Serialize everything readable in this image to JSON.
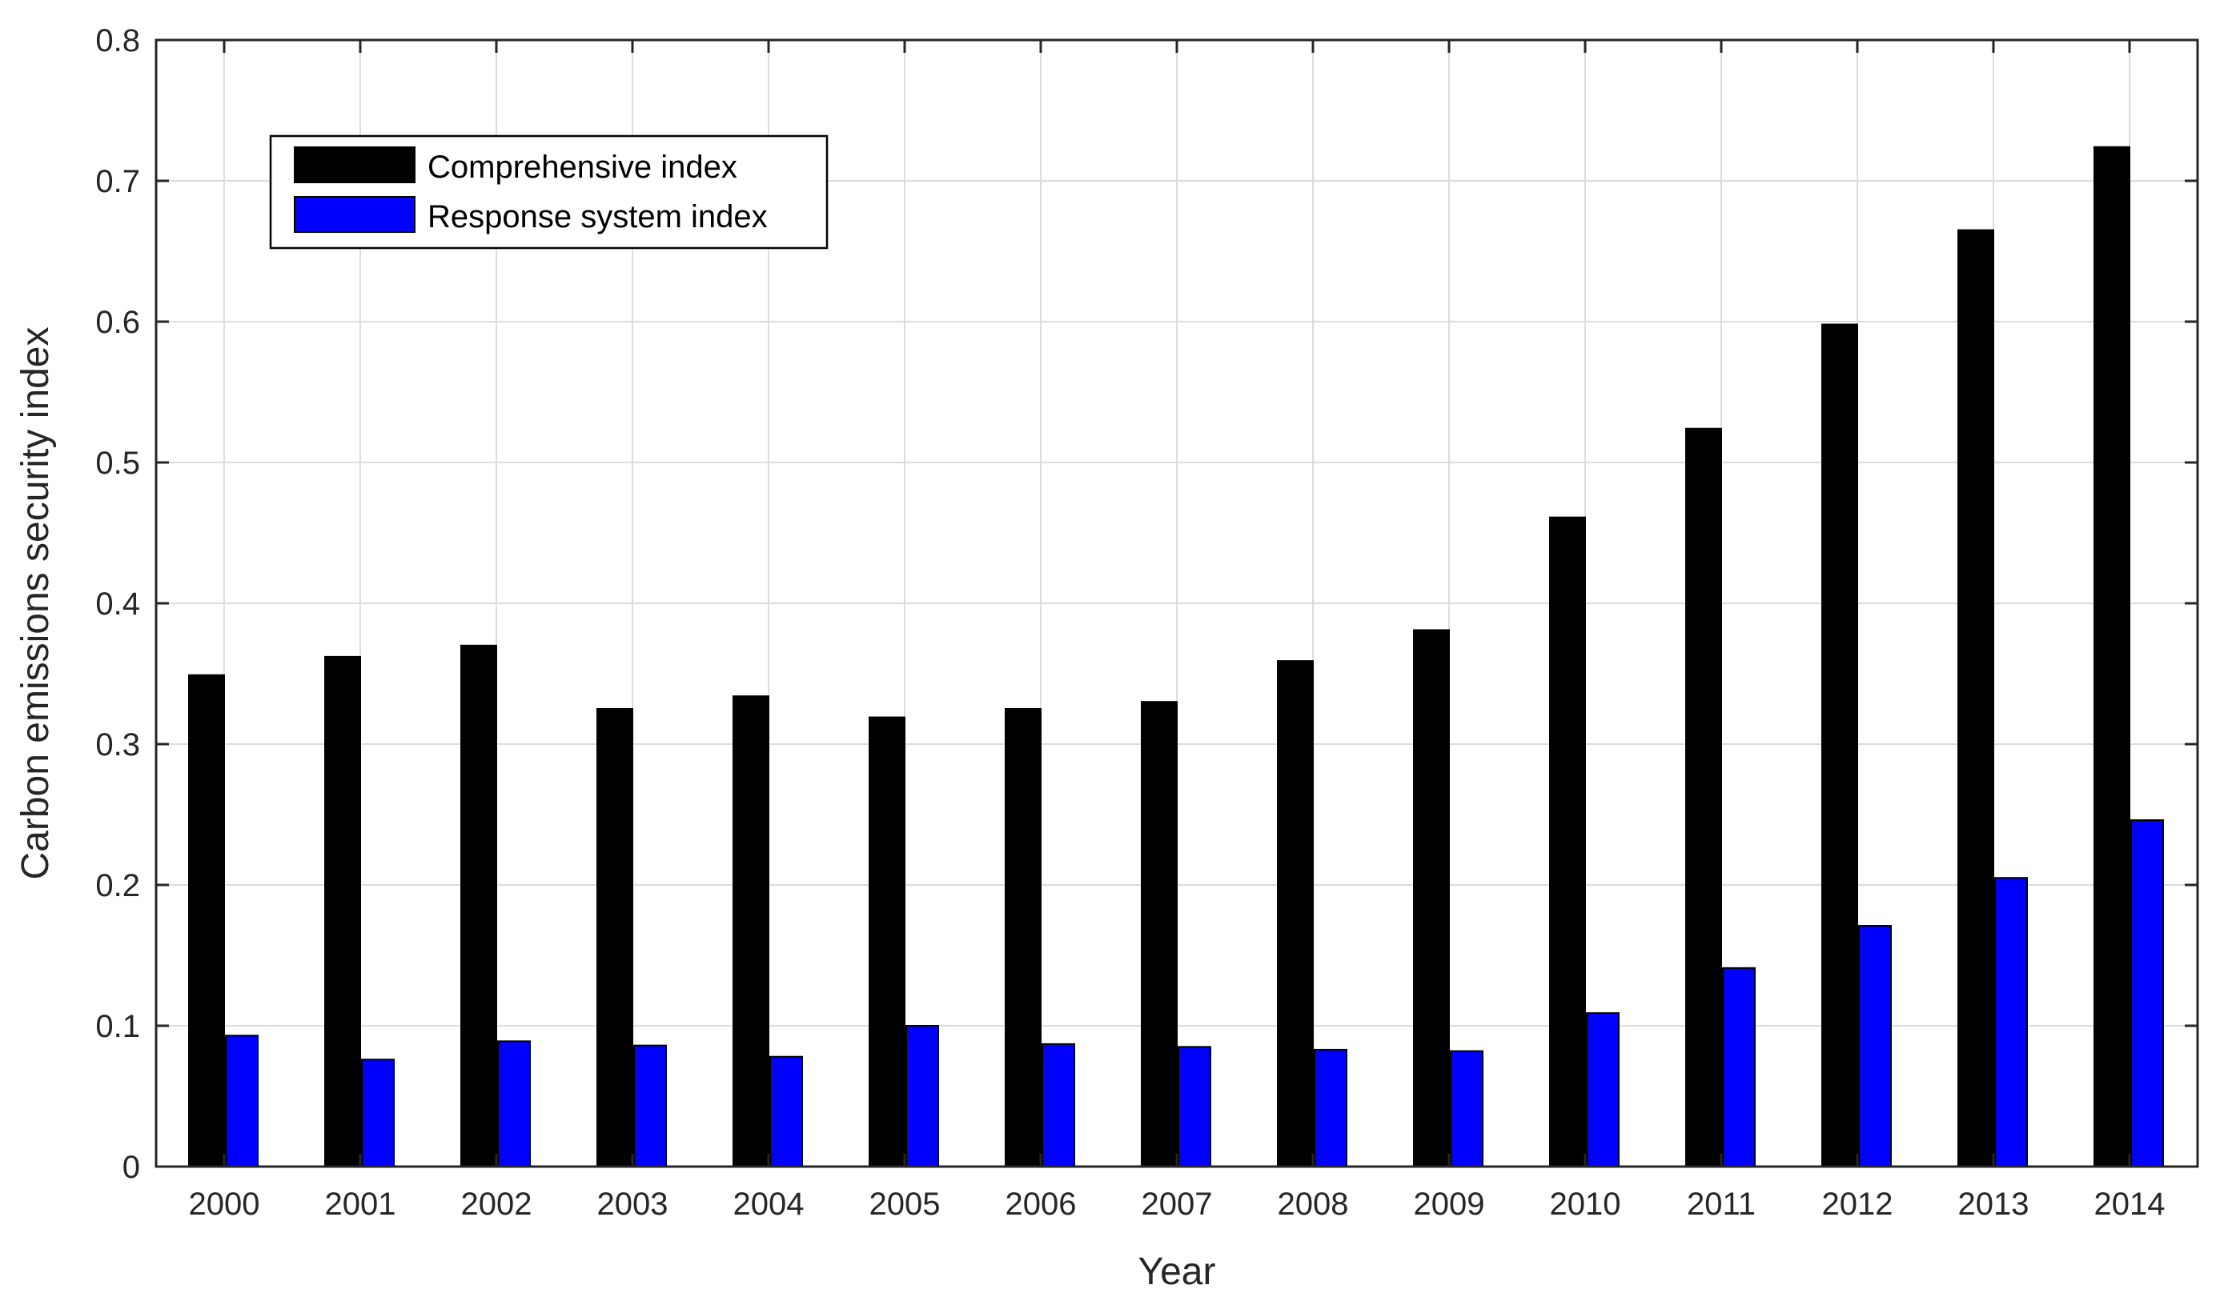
{
  "chart_data": {
    "type": "bar",
    "title": "",
    "xlabel": "Year",
    "ylabel": "Carbon emissions security index",
    "categories": [
      "2000",
      "2001",
      "2002",
      "2003",
      "2004",
      "2005",
      "2006",
      "2007",
      "2008",
      "2009",
      "2010",
      "2011",
      "2012",
      "2013",
      "2014"
    ],
    "series": [
      {
        "name": "Comprehensive index",
        "color": "#000000",
        "values": [
          0.349,
          0.362,
          0.37,
          0.325,
          0.334,
          0.319,
          0.325,
          0.33,
          0.359,
          0.381,
          0.461,
          0.524,
          0.598,
          0.665,
          0.724
        ]
      },
      {
        "name": "Response system index",
        "color": "#0000ff",
        "values": [
          0.093,
          0.076,
          0.089,
          0.086,
          0.078,
          0.1,
          0.087,
          0.085,
          0.083,
          0.082,
          0.109,
          0.141,
          0.171,
          0.205,
          0.246
        ]
      }
    ],
    "ylim": [
      0,
      0.8
    ],
    "yticks": [
      "0",
      "0.1",
      "0.2",
      "0.3",
      "0.4",
      "0.5",
      "0.6",
      "0.7",
      "0.8"
    ],
    "grid": true,
    "legend_position": "top-left"
  }
}
